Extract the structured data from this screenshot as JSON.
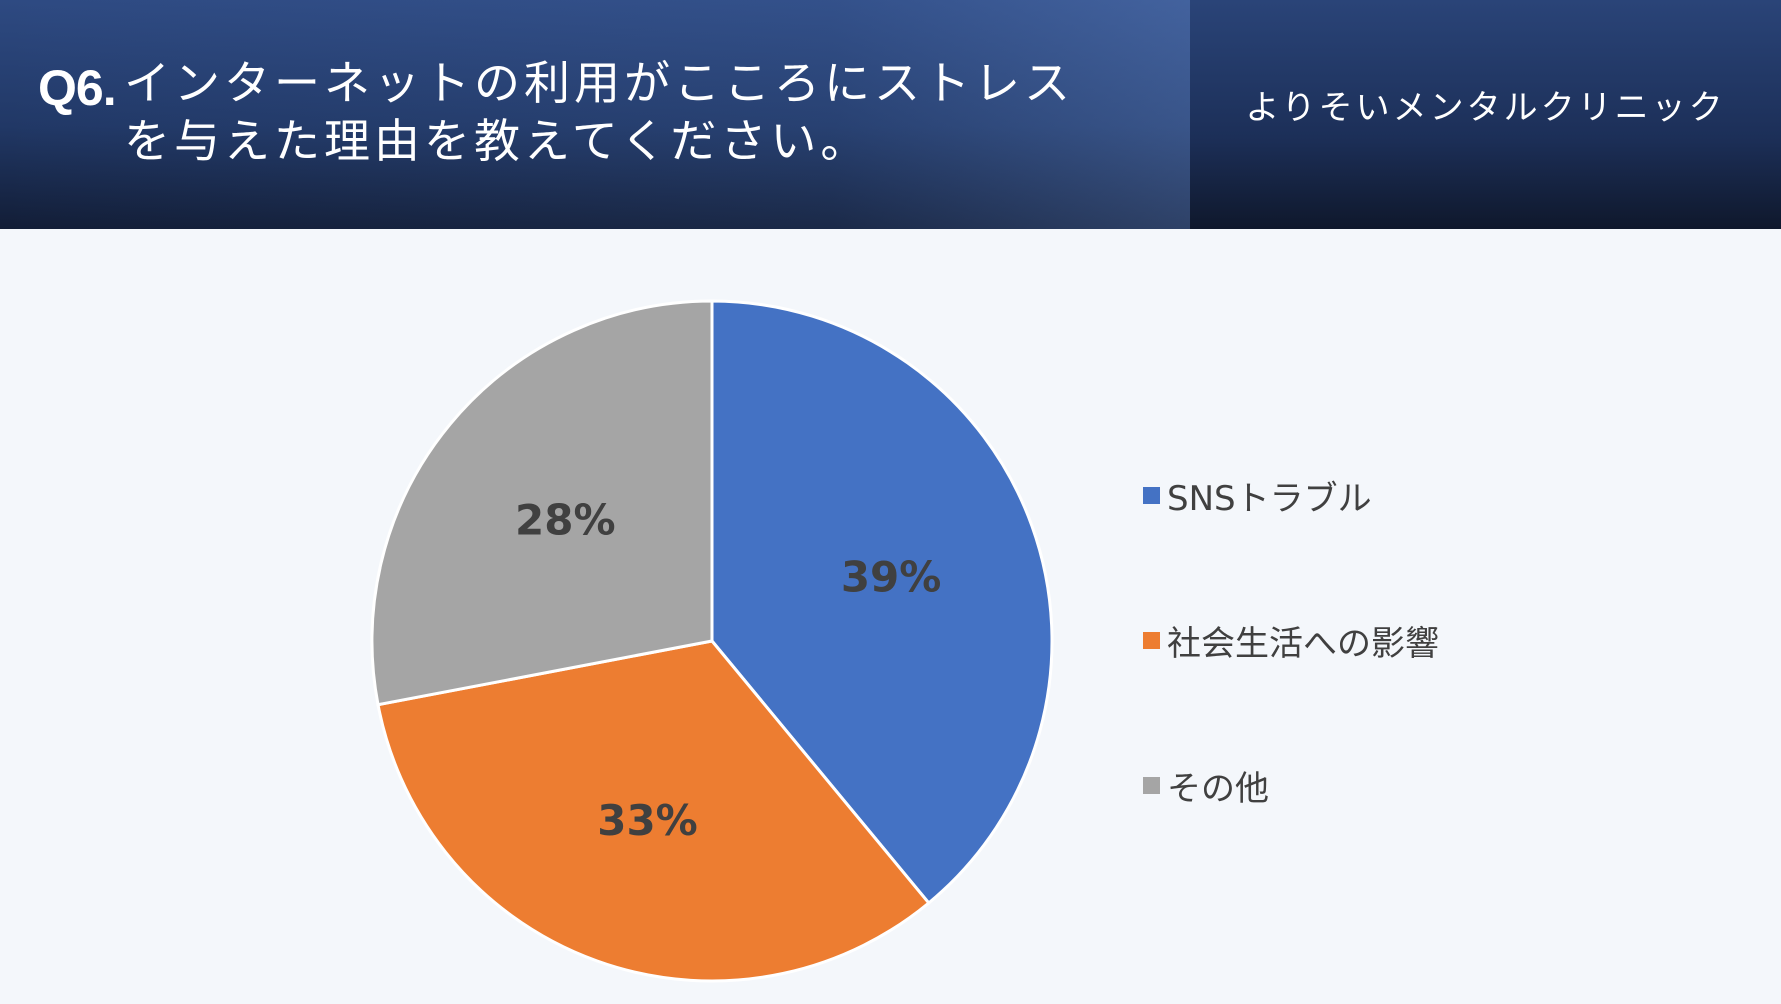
{
  "header": {
    "question_label": "Q6.",
    "question_text": "インターネットの利用がこころにストレスを与えた理由を教えてください。",
    "clinic_name": "よりそいメンタルクリニック"
  },
  "chart_data": {
    "type": "pie",
    "categories": [
      "SNSトラブル",
      "社会生活への影響",
      "その他"
    ],
    "values": [
      39,
      33,
      28
    ],
    "data_labels": [
      "39%",
      "33%",
      "28%"
    ],
    "colors": [
      "#4472c4",
      "#ed7d31",
      "#a5a5a5"
    ],
    "start_angle": "12 o'clock",
    "direction": "clockwise",
    "legend": "right"
  }
}
